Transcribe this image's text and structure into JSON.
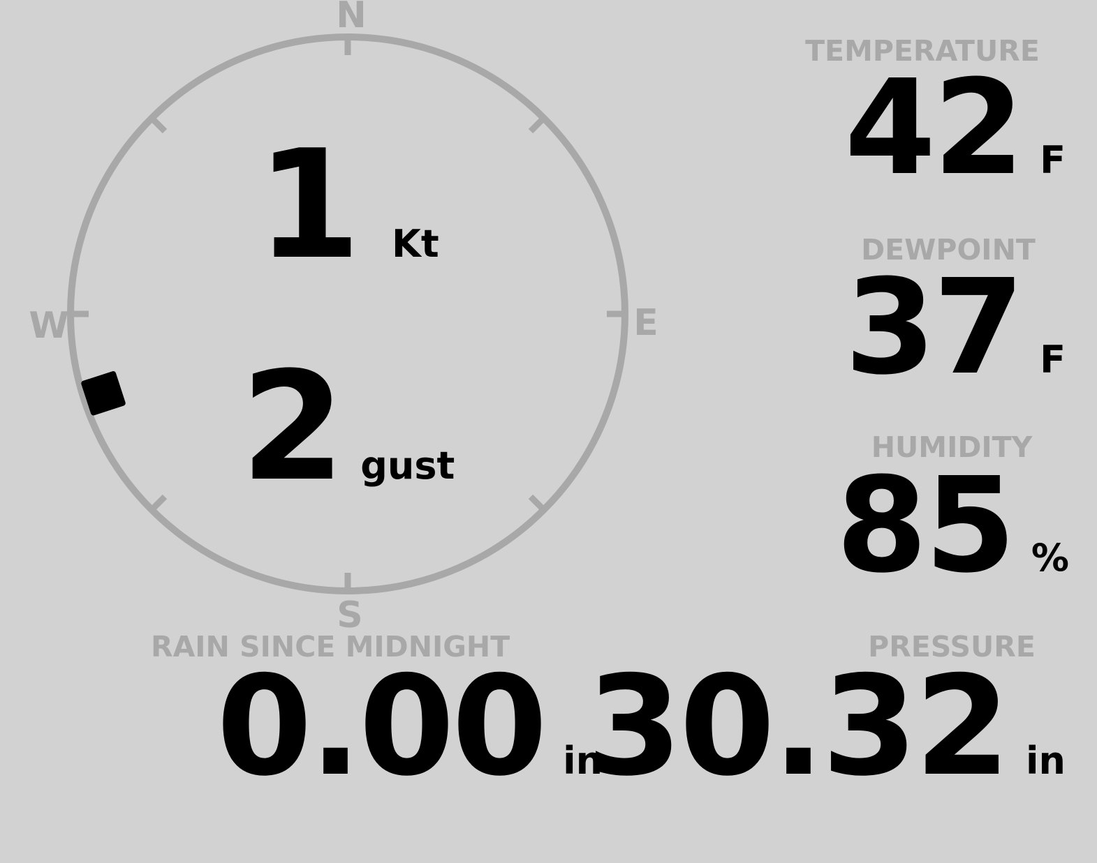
{
  "colors": {
    "background": "#d2d2d2",
    "muted": "#a8a8a8",
    "text": "#000000"
  },
  "wind_gauge": {
    "cardinal_n": "N",
    "cardinal_e": "E",
    "cardinal_s": "S",
    "cardinal_w": "W",
    "speed_value": "1",
    "speed_unit": "Kt",
    "gust_value": "2",
    "gust_unit": "gust",
    "direction_deg": 252
  },
  "readouts": {
    "temperature": {
      "label": "TEMPERATURE",
      "value": "42",
      "unit": "F"
    },
    "dewpoint": {
      "label": "DEWPOINT",
      "value": "37",
      "unit": "F"
    },
    "humidity": {
      "label": "HUMIDITY",
      "value": "85",
      "unit": "%"
    },
    "pressure": {
      "label": "PRESSURE",
      "value": "30.32",
      "unit": "in"
    },
    "rain_since_midnight": {
      "label": "RAIN SINCE MIDNIGHT",
      "value": "0.00",
      "unit": "in"
    }
  }
}
